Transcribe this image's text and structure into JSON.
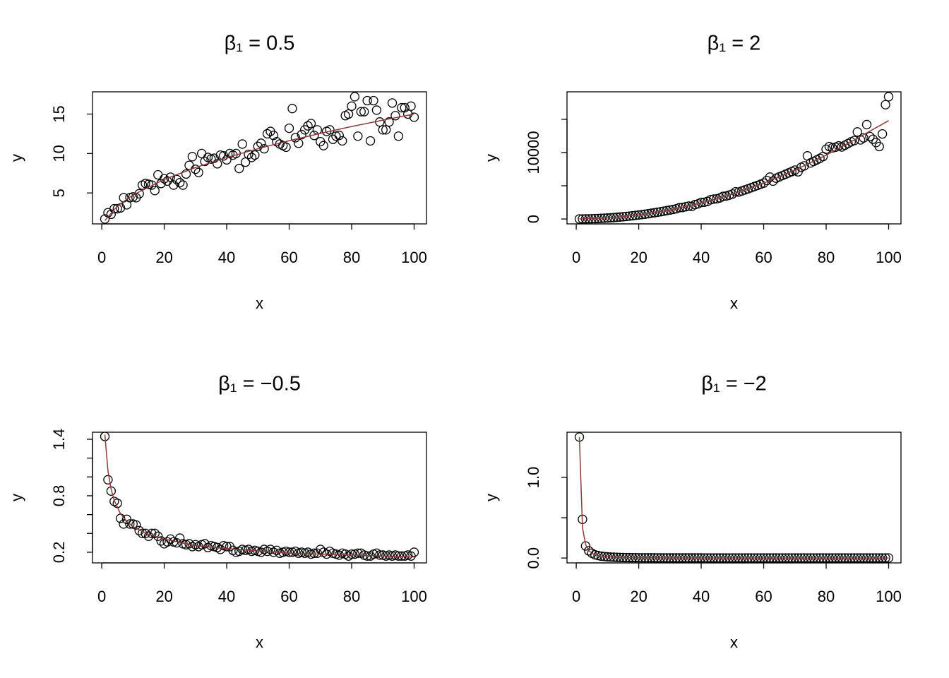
{
  "chart_data": [
    {
      "type": "scatter",
      "title": "β₁ = 0.5",
      "xlabel": "x",
      "ylabel": "y",
      "xlim": [
        -2.96,
        103.96
      ],
      "ylim": [
        1.08,
        17.82
      ],
      "xticks": [
        0,
        20,
        40,
        60,
        80,
        100
      ],
      "yticks": [
        5,
        10,
        15
      ],
      "x": [
        1,
        2,
        3,
        4,
        5,
        6,
        7,
        8,
        9,
        10,
        11,
        12,
        13,
        14,
        15,
        16,
        17,
        18,
        19,
        20,
        21,
        22,
        23,
        24,
        25,
        26,
        27,
        28,
        29,
        30,
        31,
        32,
        33,
        34,
        35,
        36,
        37,
        38,
        39,
        40,
        41,
        42,
        43,
        44,
        45,
        46,
        47,
        48,
        49,
        50,
        51,
        52,
        53,
        54,
        55,
        56,
        57,
        58,
        59,
        60,
        61,
        62,
        63,
        64,
        65,
        66,
        67,
        68,
        69,
        70,
        71,
        72,
        73,
        74,
        75,
        76,
        77,
        78,
        79,
        80,
        81,
        82,
        83,
        84,
        85,
        86,
        87,
        88,
        89,
        90,
        91,
        92,
        93,
        94,
        95,
        96,
        97,
        98,
        99,
        100
      ],
      "series": [
        {
          "type": "points",
          "color": "#000000",
          "values": [
            1.7,
            2.5,
            2.3,
            3.0,
            3.0,
            3.1,
            4.4,
            3.5,
            4.4,
            4.5,
            4.4,
            4.9,
            6.0,
            6.2,
            6.1,
            6.0,
            5.3,
            7.3,
            6.2,
            6.8,
            6.5,
            7.0,
            6.0,
            6.7,
            6.3,
            6.0,
            7.4,
            8.5,
            9.6,
            8.0,
            7.6,
            10.0,
            9.0,
            9.5,
            9.3,
            9.4,
            8.7,
            9.8,
            9.7,
            9.2,
            10.0,
            9.8,
            10.0,
            8.1,
            11.2,
            8.9,
            9.9,
            9.5,
            9.8,
            10.9,
            11.3,
            10.6,
            12.5,
            12.8,
            12.3,
            11.5,
            11.2,
            11.0,
            10.8,
            13.2,
            15.7,
            12.0,
            11.3,
            12.4,
            13.0,
            13.5,
            13.8,
            12.3,
            13.0,
            11.5,
            11.0,
            12.8,
            13.0,
            11.8,
            12.2,
            12.3,
            11.6,
            14.8,
            15.0,
            16.0,
            17.2,
            12.2,
            15.3,
            15.3,
            16.7,
            11.6,
            16.7,
            15.5,
            14.0,
            13.0,
            13.0,
            14.0,
            16.4,
            14.8,
            12.2,
            15.8,
            15.8,
            15.0,
            16.0,
            14.6
          ]
        },
        {
          "type": "line",
          "color": "#8b3a3a",
          "x": [
            1,
            5,
            10,
            20,
            30,
            40,
            50,
            60,
            70,
            80,
            90,
            100
          ],
          "values": [
            1.5,
            3.35,
            4.74,
            6.71,
            8.22,
            9.49,
            10.61,
            11.62,
            12.55,
            13.42,
            14.23,
            15.0
          ]
        }
      ]
    },
    {
      "type": "scatter",
      "title": "β₁ = 2",
      "xlabel": "x",
      "ylabel": "y",
      "xlim": [
        -2.96,
        103.96
      ],
      "ylim": [
        -736,
        19136
      ],
      "xticks": [
        0,
        20,
        40,
        60,
        80,
        100
      ],
      "yticks": [
        0,
        {
          "value": 5000
        },
        10000,
        {
          "value": 15000
        }
      ],
      "x": [
        1,
        2,
        3,
        4,
        5,
        6,
        7,
        8,
        9,
        10,
        11,
        12,
        13,
        14,
        15,
        16,
        17,
        18,
        19,
        20,
        21,
        22,
        23,
        24,
        25,
        26,
        27,
        28,
        29,
        30,
        31,
        32,
        33,
        34,
        35,
        36,
        37,
        38,
        39,
        40,
        41,
        42,
        43,
        44,
        45,
        46,
        47,
        48,
        49,
        50,
        51,
        52,
        53,
        54,
        55,
        56,
        57,
        58,
        59,
        60,
        61,
        62,
        63,
        64,
        65,
        66,
        67,
        68,
        69,
        70,
        71,
        72,
        73,
        74,
        75,
        76,
        77,
        78,
        79,
        80,
        81,
        82,
        83,
        84,
        85,
        86,
        87,
        88,
        89,
        90,
        91,
        92,
        93,
        94,
        95,
        96,
        97,
        98,
        99,
        100
      ],
      "series": [
        {
          "type": "points",
          "color": "#000000",
          "values": [
            2,
            6,
            13,
            25,
            37,
            55,
            73,
            97,
            121,
            150,
            182,
            216,
            254,
            294,
            337,
            385,
            434,
            486,
            541,
            600,
            662,
            726,
            794,
            864,
            937,
            1015,
            1094,
            1176,
            1262,
            1350,
            1441,
            1536,
            1700,
            1734,
            1838,
            1944,
            1900,
            2166,
            2282,
            2500,
            2522,
            2646,
            2900,
            3000,
            3037,
            3174,
            3400,
            3456,
            3601,
            3750,
            4100,
            4056,
            4214,
            4374,
            4537,
            4704,
            4874,
            5047,
            5222,
            5400,
            5800,
            6300,
            5700,
            6144,
            6338,
            6534,
            6734,
            6936,
            7141,
            7350,
            7100,
            7776,
            7995,
            9500,
            8438,
            8664,
            8894,
            9126,
            9400,
            10500,
            10900,
            10700,
            10800,
            11000,
            10838,
            11100,
            11354,
            11616,
            11800,
            13100,
            11900,
            12200,
            14200,
            12400,
            12000,
            11500,
            10900,
            12800,
            17200,
            18400
          ]
        },
        {
          "type": "line",
          "color": "#8b3a3a",
          "x": [
            1,
            10,
            20,
            30,
            40,
            50,
            60,
            70,
            80,
            90,
            100
          ],
          "values": [
            1.5,
            150,
            600,
            1350,
            2400,
            3750,
            5400,
            7350,
            9600,
            12150,
            14800
          ]
        }
      ]
    },
    {
      "type": "scatter",
      "title": "β₁ = −0.5",
      "xlabel": "x",
      "ylabel": "y",
      "xlim": [
        -2.96,
        103.96
      ],
      "ylim": [
        0.087,
        1.475
      ],
      "xticks": [
        0,
        20,
        40,
        60,
        80,
        100
      ],
      "yticks": [
        0.2,
        {
          "value": 0.4
        },
        {
          "value": 0.6
        },
        0.8,
        {
          "value": 1.0
        },
        {
          "value": 1.2
        },
        1.4
      ],
      "x": [
        1,
        2,
        3,
        4,
        5,
        6,
        7,
        8,
        9,
        10,
        11,
        12,
        13,
        14,
        15,
        16,
        17,
        18,
        19,
        20,
        21,
        22,
        23,
        24,
        25,
        26,
        27,
        28,
        29,
        30,
        31,
        32,
        33,
        34,
        35,
        36,
        37,
        38,
        39,
        40,
        41,
        42,
        43,
        44,
        45,
        46,
        47,
        48,
        49,
        50,
        51,
        52,
        53,
        54,
        55,
        56,
        57,
        58,
        59,
        60,
        61,
        62,
        63,
        64,
        65,
        66,
        67,
        68,
        69,
        70,
        71,
        72,
        73,
        74,
        75,
        76,
        77,
        78,
        79,
        80,
        81,
        82,
        83,
        84,
        85,
        86,
        87,
        88,
        89,
        90,
        91,
        92,
        93,
        94,
        95,
        96,
        97,
        98,
        99,
        100
      ],
      "series": [
        {
          "type": "points",
          "color": "#000000",
          "values": [
            1.43,
            0.97,
            0.85,
            0.74,
            0.72,
            0.56,
            0.5,
            0.55,
            0.5,
            0.5,
            0.49,
            0.43,
            0.4,
            0.4,
            0.37,
            0.4,
            0.4,
            0.37,
            0.32,
            0.29,
            0.31,
            0.34,
            0.31,
            0.3,
            0.35,
            0.29,
            0.28,
            0.29,
            0.26,
            0.28,
            0.26,
            0.28,
            0.29,
            0.25,
            0.27,
            0.26,
            0.25,
            0.23,
            0.27,
            0.26,
            0.26,
            0.22,
            0.2,
            0.21,
            0.23,
            0.22,
            0.23,
            0.21,
            0.22,
            0.21,
            0.2,
            0.23,
            0.21,
            0.23,
            0.2,
            0.22,
            0.19,
            0.2,
            0.21,
            0.2,
            0.2,
            0.21,
            0.19,
            0.2,
            0.19,
            0.2,
            0.18,
            0.19,
            0.19,
            0.23,
            0.2,
            0.18,
            0.21,
            0.19,
            0.18,
            0.17,
            0.19,
            0.18,
            0.16,
            0.18,
            0.18,
            0.19,
            0.19,
            0.17,
            0.16,
            0.16,
            0.18,
            0.19,
            0.17,
            0.17,
            0.16,
            0.17,
            0.16,
            0.17,
            0.16,
            0.16,
            0.16,
            0.17,
            0.16,
            0.2
          ]
        },
        {
          "type": "line",
          "color": "#8b3a3a",
          "x": [
            1,
            2,
            3,
            4,
            6,
            8,
            10,
            15,
            20,
            30,
            40,
            60,
            80,
            100
          ],
          "values": [
            1.45,
            1.06,
            0.87,
            0.75,
            0.61,
            0.53,
            0.47,
            0.39,
            0.34,
            0.27,
            0.24,
            0.19,
            0.17,
            0.15
          ]
        }
      ]
    },
    {
      "type": "scatter",
      "title": "β₁ = −2",
      "xlabel": "x",
      "ylabel": "y",
      "xlim": [
        -2.96,
        103.96
      ],
      "ylim": [
        -0.06,
        1.56
      ],
      "xticks": [
        0,
        20,
        40,
        60,
        80,
        100
      ],
      "yticks": [
        {
          "value": 0,
          "label": "0.0"
        },
        {
          "value": 0.5
        },
        {
          "value": 1,
          "label": "1.0"
        }
      ],
      "x": [
        1,
        2,
        3,
        4,
        5,
        6,
        7,
        8,
        9,
        10,
        11,
        12,
        13,
        14,
        15,
        16,
        17,
        18,
        19,
        20,
        21,
        22,
        23,
        24,
        25,
        26,
        27,
        28,
        29,
        30,
        31,
        32,
        33,
        34,
        35,
        36,
        37,
        38,
        39,
        40,
        41,
        42,
        43,
        44,
        45,
        46,
        47,
        48,
        49,
        50,
        51,
        52,
        53,
        54,
        55,
        56,
        57,
        58,
        59,
        60,
        61,
        62,
        63,
        64,
        65,
        66,
        67,
        68,
        69,
        70,
        71,
        72,
        73,
        74,
        75,
        76,
        77,
        78,
        79,
        80,
        81,
        82,
        83,
        84,
        85,
        86,
        87,
        88,
        89,
        90,
        91,
        92,
        93,
        94,
        95,
        96,
        97,
        98,
        99,
        100
      ],
      "series": [
        {
          "type": "points",
          "color": "#000000",
          "values": [
            1.5,
            0.48,
            0.15,
            0.09,
            0.06,
            0.04,
            0.031,
            0.023,
            0.019,
            0.015,
            0.0124,
            0.0104,
            0.0089,
            0.0077,
            0.0067,
            0.0059,
            0.0052,
            0.0046,
            0.0042,
            0.0038,
            0.003,
            0.003,
            0.003,
            0.003,
            0.003,
            0.002,
            0.002,
            0.002,
            0.002,
            0.002,
            0.002,
            0.002,
            0.002,
            0.002,
            0.002,
            0.002,
            0.002,
            0.002,
            0.002,
            0.002,
            0.001,
            0.001,
            0.001,
            0.001,
            0.001,
            0.001,
            0.001,
            0.001,
            0.001,
            0.001,
            0.001,
            0.001,
            0.001,
            0.001,
            0.001,
            0.001,
            0.001,
            0.001,
            0.001,
            0.001,
            0.001,
            0.001,
            0.001,
            0.001,
            0.001,
            0.001,
            0.001,
            0.001,
            0.001,
            0.001,
            0.001,
            0.001,
            0.001,
            0.001,
            0.001,
            0.001,
            0.001,
            0.001,
            0.001,
            0.001,
            0.001,
            0.001,
            0.001,
            0.001,
            0.001,
            0.001,
            0.001,
            0.001,
            0.001,
            0.001,
            0.001,
            0.001,
            0.001,
            0.001,
            0.001,
            0.001,
            0.001,
            0.001,
            0.001,
            0.001
          ]
        },
        {
          "type": "line",
          "color": "#8b3a3a",
          "x": [
            1,
            2,
            3,
            4,
            5,
            6,
            8,
            10,
            15,
            20,
            40,
            70,
            100
          ],
          "values": [
            1.5,
            0.375,
            0.167,
            0.094,
            0.06,
            0.042,
            0.023,
            0.015,
            0.0067,
            0.0038,
            0.0009,
            0.0003,
            0.00015
          ]
        }
      ]
    }
  ]
}
